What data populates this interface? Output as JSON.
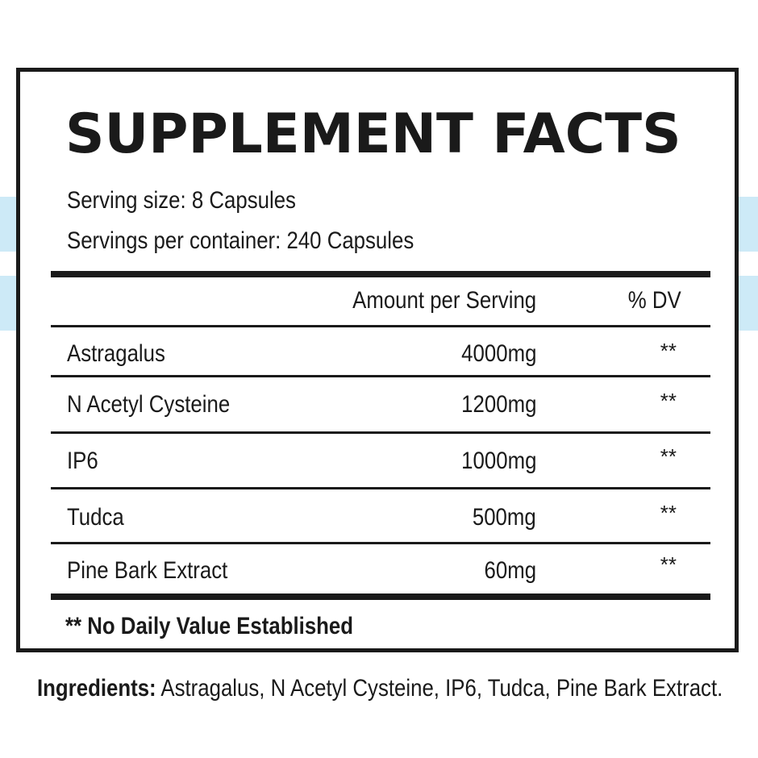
{
  "label": {
    "title": "SUPPLEMENT FACTS",
    "serving_size": "Serving size: 8 Capsules",
    "servings_per_container": "Servings per container: 240 Capsules",
    "headers": {
      "amount": "Amount per Serving",
      "dv": "% DV"
    },
    "rows": [
      {
        "name": "Astragalus",
        "amount": "4000mg",
        "dv": "**"
      },
      {
        "name": "N Acetyl Cysteine",
        "amount": "1200mg",
        "dv": "**"
      },
      {
        "name": "IP6",
        "amount": "1000mg",
        "dv": "**"
      },
      {
        "name": "Tudca",
        "amount": "500mg",
        "dv": "**"
      },
      {
        "name": "Pine Bark Extract",
        "amount": "60mg",
        "dv": "**"
      }
    ],
    "footnote": "** No Daily Value Established"
  },
  "ingredients": {
    "label": "Ingredients:",
    "text": " Astragalus, N Acetyl Cysteine, IP6, Tudca, Pine Bark Extract."
  },
  "colors": {
    "text": "#1a1a1a",
    "stripe": "#cdeaf7",
    "background": "#ffffff"
  }
}
